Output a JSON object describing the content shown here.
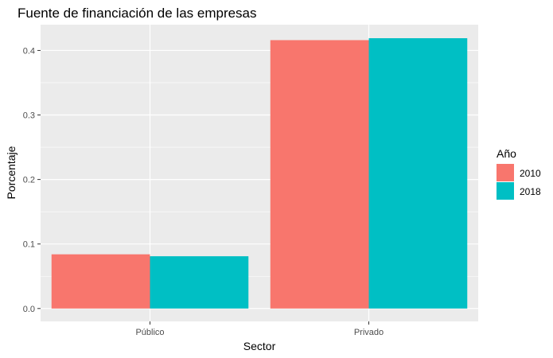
{
  "chart_data": {
    "type": "bar",
    "title": "Fuente de financiación de las empresas",
    "xlabel": "Sector",
    "ylabel": "Porcentaje",
    "categories": [
      "Público",
      "Privado"
    ],
    "series": [
      {
        "name": "2010",
        "values": [
          0.084,
          0.416
        ],
        "color": "#F8766D"
      },
      {
        "name": "2018",
        "values": [
          0.081,
          0.419
        ],
        "color": "#00BFC4"
      }
    ],
    "ylim": [
      -0.02,
      0.44
    ],
    "yticks": [
      0.0,
      0.1,
      0.2,
      0.3,
      0.4
    ],
    "ytick_labels": [
      "0.0",
      "0.1",
      "0.2",
      "0.3",
      "0.4"
    ],
    "grid": true,
    "panel_background": "#EBEBEB",
    "grid_color": "#FFFFFF",
    "legend_title": "Año",
    "legend_position": "right"
  }
}
